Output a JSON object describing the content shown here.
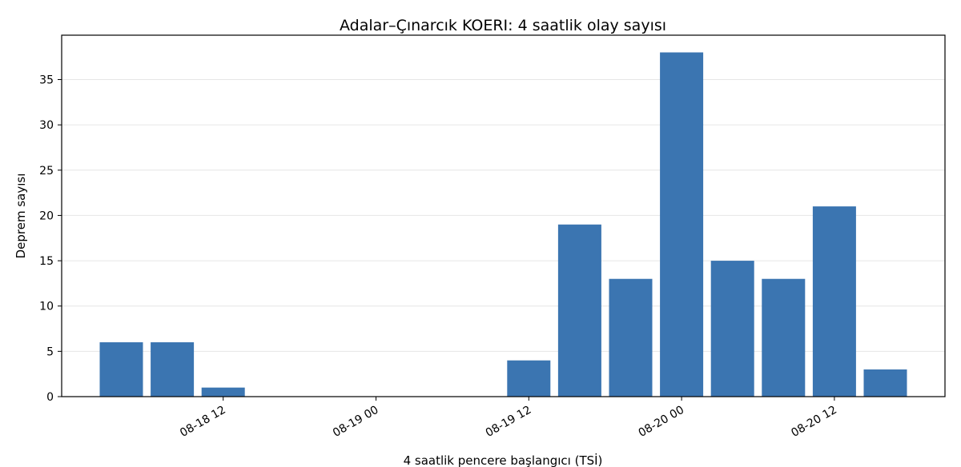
{
  "chart_data": {
    "type": "bar",
    "title": "Adalar–Çınarcık KOERI: 4 saatlik olay sayısı",
    "xlabel": "4 saatlik pencere başlangıcı (TSİ)",
    "ylabel": "Deprem sayısı",
    "x": [
      "08-18 04",
      "08-18 08",
      "08-18 12",
      "08-18 16",
      "08-18 20",
      "08-19 00",
      "08-19 04",
      "08-19 08",
      "08-19 12",
      "08-19 16",
      "08-19 20",
      "08-20 00",
      "08-20 04",
      "08-20 08",
      "08-20 12",
      "08-20 16"
    ],
    "values": [
      6,
      6,
      1,
      0,
      0,
      0,
      0,
      0,
      4,
      19,
      13,
      38,
      15,
      13,
      21,
      3
    ],
    "xticks": [
      "08-18 12",
      "08-19 00",
      "08-19 12",
      "08-20 00",
      "08-20 12"
    ],
    "yticks": [
      0,
      5,
      10,
      15,
      20,
      25,
      30,
      35
    ],
    "ylim": [
      0,
      39.9
    ],
    "grid": "horizontal",
    "bar_color": "#3b75b1",
    "grid_color": "#e6e6e6"
  }
}
